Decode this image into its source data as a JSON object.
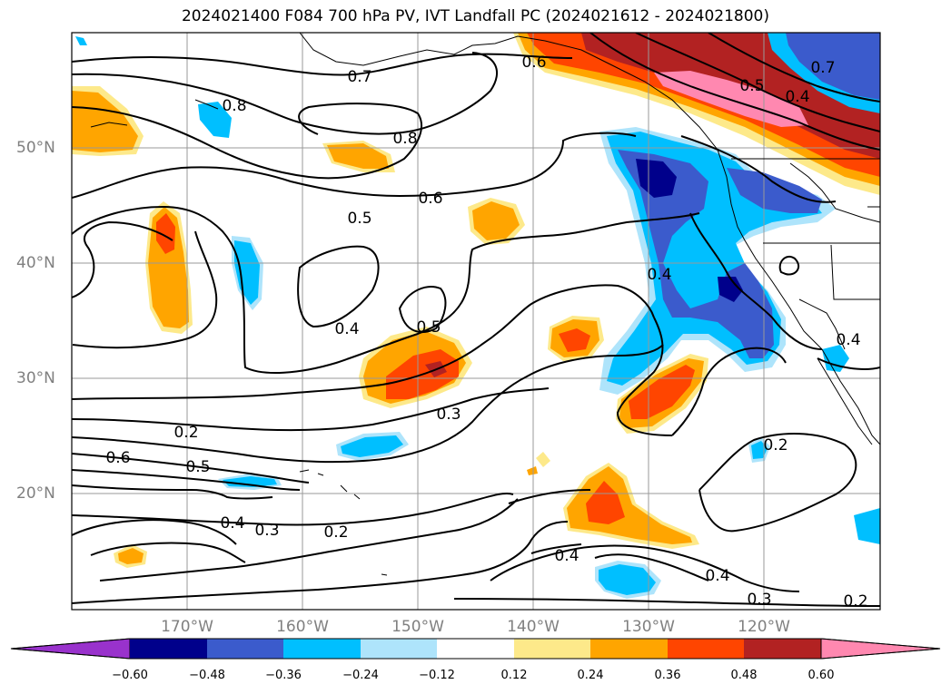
{
  "title": "2024021400 F084 700 hPa PV, IVT Landfall PC (2024021612 - 2024021800)",
  "longitude_labels": [
    "170°W",
    "160°W",
    "150°W",
    "140°W",
    "130°W",
    "120°W"
  ],
  "latitude_labels": [
    "50°N",
    "40°N",
    "30°N",
    "20°N"
  ],
  "contour_labels": [
    "0.7",
    "0.6",
    "0.8",
    "0.8",
    "0.6",
    "0.5",
    "0.4",
    "0.5",
    "0.3",
    "0.2",
    "0.6",
    "0.5",
    "0.4",
    "0.3",
    "0.2",
    "0.4",
    "0.4",
    "0.3",
    "0.2",
    "0.2",
    "0.4",
    "0.5",
    "0.4",
    "0.4",
    "0.7"
  ],
  "colorbar": {
    "ticks": [
      "−0.60",
      "−0.48",
      "−0.36",
      "−0.24",
      "−0.12",
      "0.12",
      "0.24",
      "0.36",
      "0.48",
      "0.60"
    ],
    "colors": [
      "#9932cc",
      "#00008b",
      "#3b5bcc",
      "#00bfff",
      "#aee4fb",
      "#ffffff",
      "#fde98a",
      "#ffa500",
      "#ff4500",
      "#b22222",
      "#ff88b0"
    ]
  },
  "map": {
    "extent": {
      "lon_min": -180,
      "lon_max": -110,
      "lat_min": 10,
      "lat_max": 60
    },
    "shading_colors": {
      "pink": "#ff88b0",
      "darkred": "#b22222",
      "red": "#ff4500",
      "orange": "#ffa500",
      "yellow": "#fde98a",
      "lightblue": "#aee4fb",
      "blue": "#00bfff",
      "royal": "#3b5bcc",
      "navy": "#00008b"
    }
  }
}
